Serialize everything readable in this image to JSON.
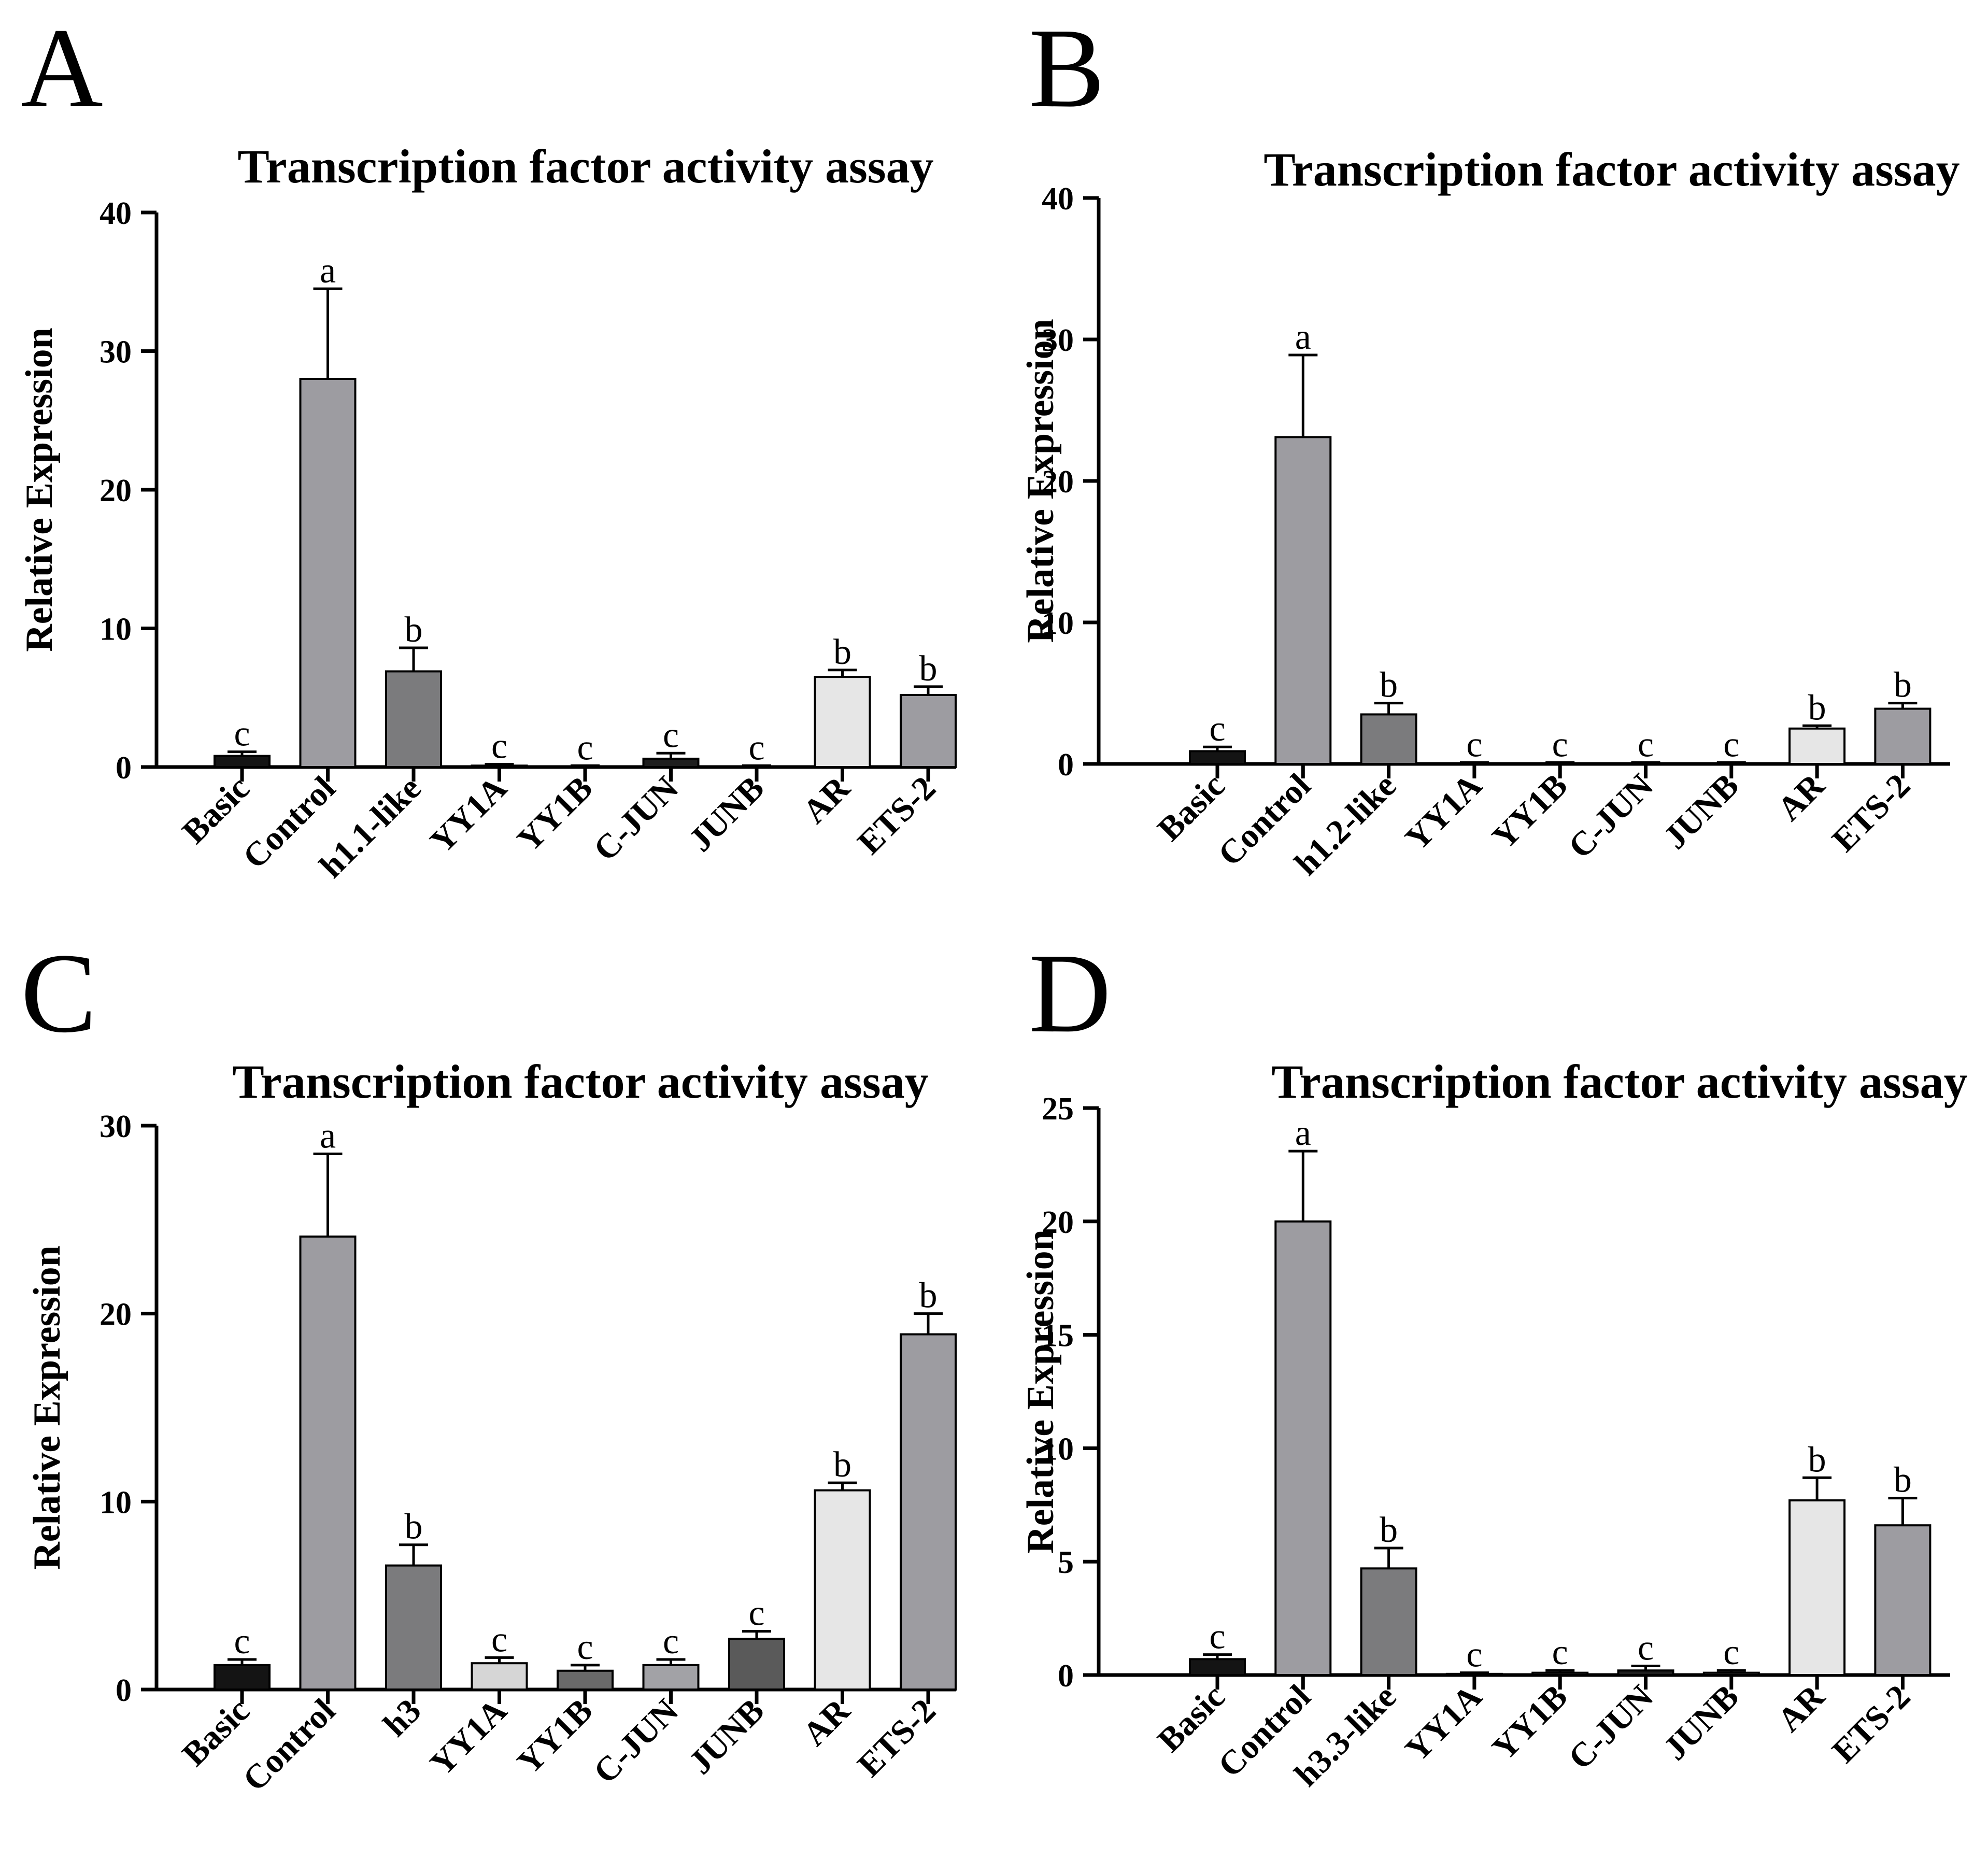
{
  "figure": {
    "panel_count": 4
  },
  "chart_data": [
    {
      "panel": "A",
      "type": "bar",
      "title": "Transcription factor activity assay",
      "xlabel": "",
      "ylabel": "Relative Expression",
      "ylim": [
        0,
        40
      ],
      "yticks": [
        0,
        10,
        20,
        30,
        40
      ],
      "categories": [
        "Basic",
        "Control",
        "h1.1-like",
        "YY1A",
        "YY1B",
        "C-JUN",
        "JUNB",
        "AR",
        "ETS-2"
      ],
      "values": [
        0.8,
        28,
        6.9,
        0.1,
        0.05,
        0.6,
        0.05,
        6.5,
        5.2
      ],
      "errors": [
        0.3,
        6.5,
        1.7,
        0.1,
        0.05,
        0.4,
        0.05,
        0.5,
        0.6
      ],
      "significance": [
        "c",
        "a",
        "b",
        "c",
        "c",
        "c",
        "c",
        "b",
        "b"
      ],
      "colors": [
        "#141414",
        "#9d9ca1",
        "#7b7b7d",
        "#3c3c3c",
        "#3c3c3c",
        "#1e1e1e",
        "#505050",
        "#e6e6e6",
        "#9d9ca1"
      ]
    },
    {
      "panel": "B",
      "type": "bar",
      "title": "Transcription factor activity assay",
      "xlabel": "",
      "ylabel": "Relative Expression",
      "ylim": [
        0,
        40
      ],
      "yticks": [
        0,
        10,
        20,
        30,
        40
      ],
      "categories": [
        "Basic",
        "Control",
        "h1.2-like",
        "YY1A",
        "YY1B",
        "C-JUN",
        "JUNB",
        "AR",
        "ETS-2"
      ],
      "values": [
        0.9,
        23.1,
        3.5,
        0.05,
        0.05,
        0.05,
        0.05,
        2.5,
        3.9
      ],
      "errors": [
        0.3,
        5.8,
        0.8,
        0.05,
        0.05,
        0.05,
        0.05,
        0.2,
        0.4
      ],
      "significance": [
        "c",
        "a",
        "b",
        "c",
        "c",
        "c",
        "c",
        "b",
        "b"
      ],
      "colors": [
        "#141414",
        "#9d9ca1",
        "#7b7b7d",
        "#3c3c3c",
        "#3c3c3c",
        "#1e1e1e",
        "#505050",
        "#e6e6e6",
        "#9d9ca1"
      ]
    },
    {
      "panel": "C",
      "type": "bar",
      "title": "Transcription factor activity assay",
      "xlabel": "",
      "ylabel": "Relative Expression",
      "ylim": [
        0,
        30
      ],
      "yticks": [
        0,
        10,
        20,
        30
      ],
      "categories": [
        "Basic",
        "Control",
        "h3",
        "YY1A",
        "YY1B",
        "C-JUN",
        "JUNB",
        "AR",
        "ETS-2"
      ],
      "values": [
        1.3,
        24.1,
        6.6,
        1.4,
        1.0,
        1.3,
        2.7,
        10.6,
        18.9
      ],
      "errors": [
        0.3,
        4.4,
        1.1,
        0.3,
        0.3,
        0.3,
        0.4,
        0.4,
        1.1
      ],
      "significance": [
        "c",
        "a",
        "b",
        "c",
        "c",
        "c",
        "c",
        "b",
        "b"
      ],
      "colors": [
        "#141414",
        "#9d9ca1",
        "#7b7b7d",
        "#d6d6d6",
        "#6a6a6a",
        "#a2a2a6",
        "#5a5a5a",
        "#e6e6e6",
        "#9d9ca1"
      ]
    },
    {
      "panel": "D",
      "type": "bar",
      "title": "Transcription factor activity assay",
      "xlabel": "",
      "ylabel": "Relative Expression",
      "ylim": [
        0,
        25
      ],
      "yticks": [
        0,
        5,
        10,
        15,
        20,
        25
      ],
      "categories": [
        "Basic",
        "Control",
        "h3.3-like",
        "YY1A",
        "YY1B",
        "C-JUN",
        "JUNB",
        "AR",
        "ETS-2"
      ],
      "values": [
        0.7,
        20,
        4.7,
        0.05,
        0.1,
        0.2,
        0.1,
        7.7,
        6.6
      ],
      "errors": [
        0.2,
        3.1,
        0.9,
        0.05,
        0.1,
        0.2,
        0.1,
        1.0,
        1.2
      ],
      "significance": [
        "c",
        "a",
        "b",
        "c",
        "c",
        "c",
        "c",
        "b",
        "b"
      ],
      "colors": [
        "#141414",
        "#9d9ca1",
        "#7b7b7d",
        "#3c3c3c",
        "#3c3c3c",
        "#1e1e1e",
        "#505050",
        "#e6e6e6",
        "#9d9ca1"
      ]
    }
  ]
}
